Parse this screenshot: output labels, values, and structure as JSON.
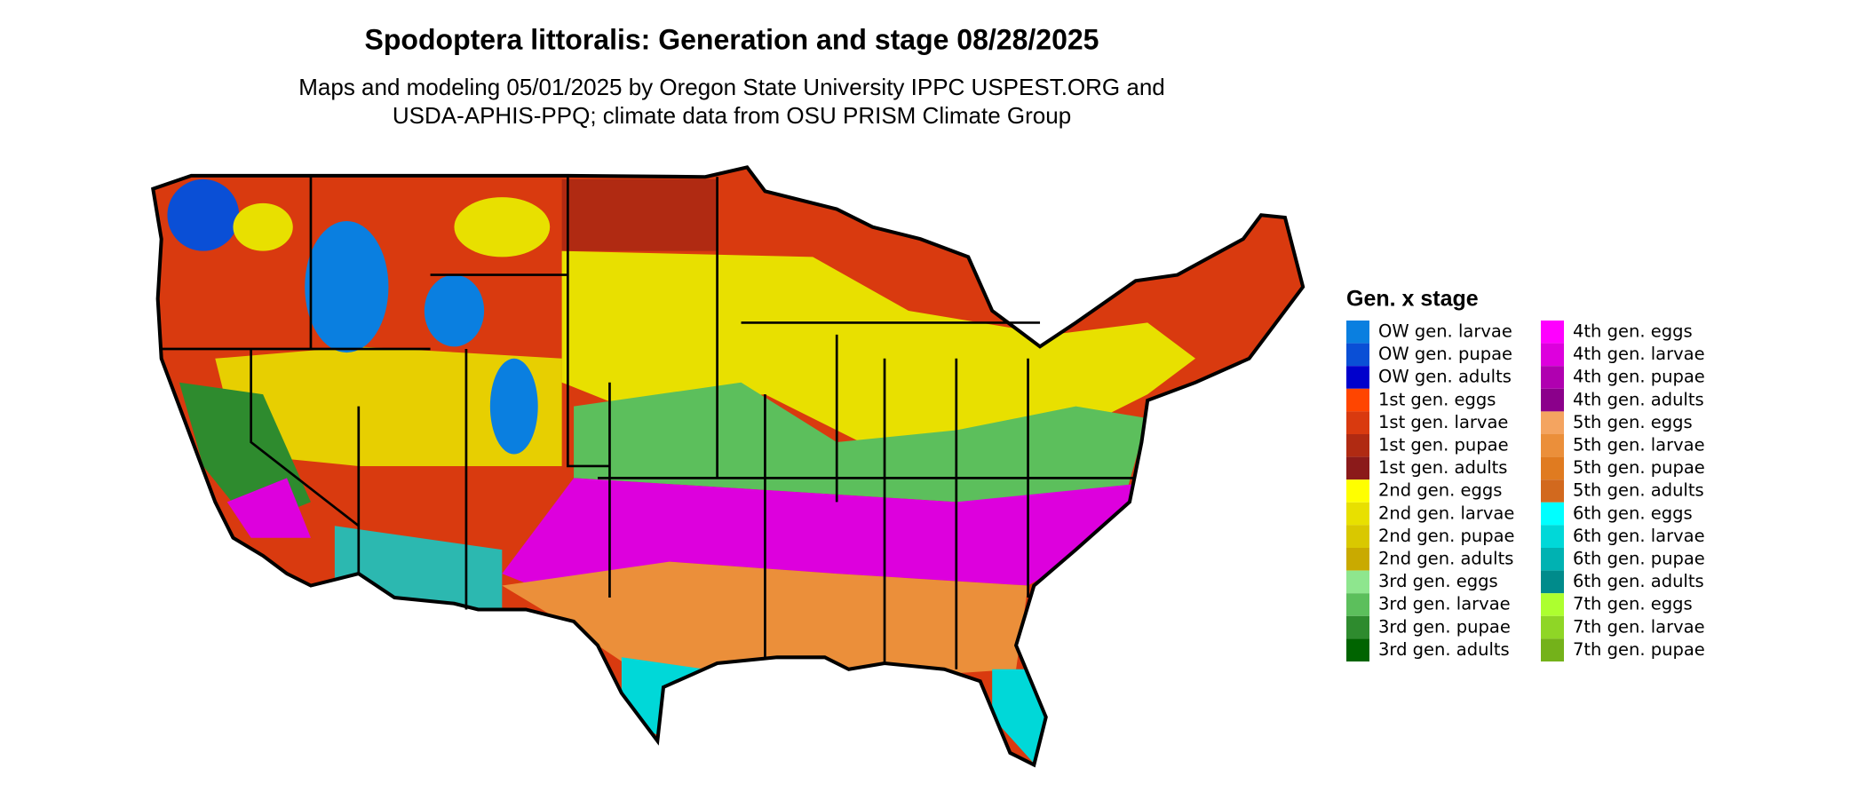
{
  "title": "Spodoptera littoralis: Generation and stage 08/28/2025",
  "subtitle": [
    "Maps and modeling 05/01/2025 by Oregon State University IPPC USPEST.ORG and",
    "USDA-APHIS-PPQ; climate data from OSU PRISM Climate Group"
  ],
  "legend": {
    "title": "Gen. x stage",
    "items": [
      {
        "label": "OW gen. larvae",
        "color": "#0a7fe0"
      },
      {
        "label": "OW gen. pupae",
        "color": "#0a4fd6"
      },
      {
        "label": "OW gen. adults",
        "color": "#0000cc"
      },
      {
        "label": "1st gen. eggs",
        "color": "#ff4500"
      },
      {
        "label": "1st gen. larvae",
        "color": "#d93a0f"
      },
      {
        "label": "1st gen. pupae",
        "color": "#b02a12"
      },
      {
        "label": "1st gen. adults",
        "color": "#8b1a1a"
      },
      {
        "label": "2nd gen. eggs",
        "color": "#ffff00"
      },
      {
        "label": "2nd gen. larvae",
        "color": "#e8e000"
      },
      {
        "label": "2nd gen. pupae",
        "color": "#d9c800"
      },
      {
        "label": "2nd gen. adults",
        "color": "#c9aa00"
      },
      {
        "label": "3rd gen. eggs",
        "color": "#8ee68e"
      },
      {
        "label": "3rd gen. larvae",
        "color": "#5cbf5c"
      },
      {
        "label": "3rd gen. pupae",
        "color": "#2e8b2e"
      },
      {
        "label": "3rd gen. adults",
        "color": "#006400"
      },
      {
        "label": "4th gen. eggs",
        "color": "#ff00ff"
      },
      {
        "label": "4th gen. larvae",
        "color": "#dd00dd"
      },
      {
        "label": "4th gen. pupae",
        "color": "#b000b0"
      },
      {
        "label": "4th gen. adults",
        "color": "#8b008b"
      },
      {
        "label": "5th gen. eggs",
        "color": "#f4a460"
      },
      {
        "label": "5th gen. larvae",
        "color": "#eb8f3a"
      },
      {
        "label": "5th gen. pupae",
        "color": "#e07b20"
      },
      {
        "label": "5th gen. adults",
        "color": "#d2691e"
      },
      {
        "label": "6th gen. eggs",
        "color": "#00ffff"
      },
      {
        "label": "6th gen. larvae",
        "color": "#00d8d8"
      },
      {
        "label": "6th gen. pupae",
        "color": "#00b2b2"
      },
      {
        "label": "6th gen. adults",
        "color": "#008b8b"
      },
      {
        "label": "7th gen. eggs",
        "color": "#adff2f"
      },
      {
        "label": "7th gen. larvae",
        "color": "#8fd626"
      },
      {
        "label": "7th gen. pupae",
        "color": "#74b21a"
      }
    ]
  }
}
